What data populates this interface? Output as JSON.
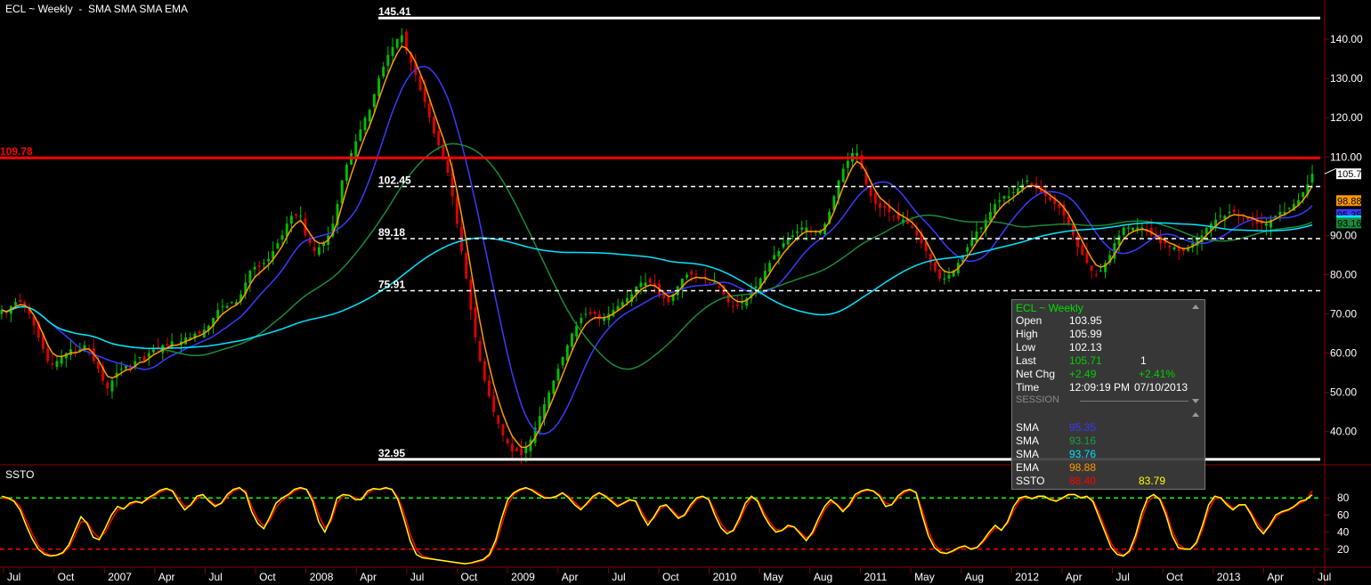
{
  "title": "ECL ~ Weekly  -  SMA SMA SMA EMA",
  "subtitle": "SSTO",
  "chart_data": [
    {
      "type": "candlestick",
      "title": "ECL ~ Weekly",
      "ylim": [
        32,
        150
      ],
      "y_ticks": [
        40,
        50,
        60,
        70,
        80,
        90,
        110,
        120,
        130,
        140
      ],
      "y_tick_labels": [
        "40.00",
        "50.00",
        "60.00",
        "70.00",
        "80.00",
        "90.00",
        "110.00",
        "120.00",
        "130.00",
        "140.00"
      ],
      "x_tick_labels": [
        "Jul",
        "Oct",
        "2007",
        "Apr",
        "Jul",
        "Oct",
        "2008",
        "Apr",
        "Jul",
        "Oct",
        "2009",
        "Apr",
        "Jul",
        "Oct",
        "2010",
        "May",
        "Aug",
        "2011",
        "May",
        "Aug",
        "2012",
        "Apr",
        "Jul",
        "Oct",
        "2013",
        "Apr",
        "Jul"
      ],
      "close": [
        71,
        70,
        72,
        73,
        73,
        72,
        70,
        67,
        64,
        61,
        58,
        57,
        58,
        59,
        60,
        61,
        60,
        61,
        62,
        61,
        58,
        56,
        53,
        51,
        53,
        55,
        56,
        57,
        56,
        58,
        59,
        58,
        60,
        61,
        61,
        62,
        62,
        63,
        62,
        63,
        64,
        64,
        65,
        65,
        66,
        67,
        69,
        71,
        72,
        72,
        73,
        73,
        75,
        78,
        81,
        82,
        82,
        83,
        84,
        86,
        88,
        90,
        93,
        95,
        95,
        95,
        90,
        88,
        86,
        87,
        88,
        90,
        93,
        98,
        104,
        108,
        111,
        114,
        117,
        120,
        122,
        126,
        130,
        133,
        136,
        138,
        140,
        141,
        137,
        134,
        131,
        127,
        124,
        120,
        116,
        113,
        110,
        106,
        100,
        93,
        86,
        79,
        71,
        64,
        58,
        53,
        49,
        45,
        42,
        39,
        37,
        35,
        35,
        34,
        36,
        38,
        41,
        44,
        47,
        50,
        53,
        56,
        59,
        62,
        65,
        67,
        69,
        70,
        70,
        70,
        69,
        69,
        70,
        71,
        72,
        73,
        74,
        75,
        77,
        78,
        78,
        78,
        77,
        75,
        74,
        73,
        75,
        77,
        79,
        80,
        80,
        80,
        79,
        79,
        78,
        78,
        77,
        75,
        73,
        72,
        72,
        73,
        74,
        76,
        77,
        79,
        81,
        83,
        85,
        86,
        88,
        89,
        90,
        91,
        92,
        92,
        91,
        91,
        91,
        93,
        96,
        100,
        104,
        107,
        109,
        111,
        111,
        107,
        103,
        100,
        98,
        97,
        97,
        96,
        95,
        94,
        94,
        93,
        92,
        90,
        88,
        86,
        83,
        81,
        79,
        79,
        80,
        81,
        83,
        85,
        87,
        89,
        91,
        92,
        94,
        96,
        98,
        99,
        100,
        100,
        101,
        102,
        103,
        104,
        103,
        102,
        101,
        100,
        99,
        98,
        97,
        95,
        93,
        90,
        87,
        85,
        83,
        81,
        80,
        81,
        83,
        85,
        88,
        90,
        92,
        92,
        92,
        92,
        92,
        91,
        90,
        89,
        88,
        88,
        87,
        87,
        86,
        86,
        87,
        88,
        89,
        90,
        92,
        93,
        94,
        95,
        95,
        96,
        96,
        95,
        95,
        94,
        94,
        93,
        93,
        93,
        94,
        95,
        96,
        96,
        97,
        98,
        99,
        101,
        103,
        105.71
      ],
      "overlays": [
        {
          "name": "SMA",
          "color": "#3a3aff",
          "last": 95.35
        },
        {
          "name": "SMA",
          "color": "#1a8a3a",
          "last": 93.16
        },
        {
          "name": "SMA",
          "color": "#00e5ff",
          "last": 93.76
        },
        {
          "name": "EMA",
          "color": "#ff9900",
          "last": 98.88
        }
      ],
      "horizontal_levels": [
        {
          "value": 145.41,
          "label": "145.41",
          "style": "solid",
          "color": "#ffffff"
        },
        {
          "value": 109.78,
          "label": "109.78",
          "style": "solid",
          "color": "#ff0000"
        },
        {
          "value": 102.45,
          "label": "102.45",
          "style": "dashed",
          "color": "#ffffff"
        },
        {
          "value": 89.18,
          "label": "89.18",
          "style": "dashed",
          "color": "#ffffff"
        },
        {
          "value": 75.91,
          "label": "75.91",
          "style": "dashed",
          "color": "#ffffff"
        },
        {
          "value": 32.95,
          "label": "32.95",
          "style": "solid",
          "color": "#ffffff"
        }
      ],
      "price_tags": [
        {
          "label": "105.71",
          "color": "#ffffff"
        },
        {
          "label": "98.88",
          "color": "#ff9900"
        },
        {
          "label": "95.35",
          "color": "#3a3aff"
        },
        {
          "label": "93.76",
          "color": "#00e5ff"
        },
        {
          "label": "93.16",
          "color": "#1a8a3a"
        }
      ]
    },
    {
      "type": "line",
      "title": "SSTO",
      "ylim": [
        0,
        100
      ],
      "y_ticks": [
        20,
        40,
        60,
        80
      ],
      "y_tick_labels": [
        "20",
        "40",
        "60",
        "80"
      ],
      "levels": [
        {
          "value": 80,
          "color": "#00ff00"
        },
        {
          "value": 20,
          "color": "#ff0000"
        }
      ],
      "k": [
        82,
        80,
        76,
        66,
        48,
        32,
        20,
        14,
        12,
        13,
        16,
        25,
        42,
        58,
        50,
        34,
        31,
        45,
        60,
        70,
        67,
        74,
        76,
        74,
        80,
        84,
        89,
        91,
        88,
        76,
        66,
        72,
        82,
        84,
        76,
        70,
        74,
        84,
        90,
        92,
        86,
        64,
        50,
        44,
        58,
        74,
        80,
        84,
        90,
        92,
        90,
        76,
        52,
        40,
        56,
        80,
        84,
        83,
        78,
        78,
        88,
        91,
        90,
        92,
        90,
        78,
        55,
        30,
        14,
        10,
        9,
        8,
        7,
        6,
        5,
        4,
        3,
        4,
        6,
        8,
        14,
        30,
        56,
        78,
        86,
        90,
        92,
        89,
        84,
        80,
        80,
        82,
        86,
        80,
        72,
        66,
        74,
        82,
        86,
        82,
        76,
        70,
        74,
        78,
        76,
        60,
        48,
        58,
        70,
        72,
        64,
        56,
        60,
        72,
        80,
        82,
        78,
        60,
        45,
        38,
        42,
        56,
        74,
        82,
        76,
        60,
        48,
        40,
        42,
        48,
        46,
        38,
        30,
        40,
        56,
        70,
        78,
        72,
        64,
        72,
        84,
        88,
        90,
        88,
        82,
        70,
        72,
        82,
        88,
        90,
        86,
        60,
        36,
        22,
        16,
        15,
        18,
        22,
        24,
        20,
        22,
        30,
        40,
        48,
        42,
        52,
        70,
        80,
        82,
        79,
        82,
        82,
        78,
        76,
        80,
        84,
        84,
        80,
        82,
        76,
        58,
        40,
        22,
        14,
        12,
        18,
        36,
        62,
        80,
        84,
        78,
        60,
        36,
        22,
        20,
        20,
        28,
        48,
        72,
        82,
        80,
        72,
        66,
        72,
        72,
        60,
        46,
        38,
        48,
        60,
        64,
        66,
        70,
        76,
        78,
        83.79
      ],
      "d": [
        80,
        79,
        77,
        70,
        54,
        38,
        24,
        16,
        13,
        13,
        15,
        22,
        36,
        52,
        52,
        40,
        33,
        40,
        54,
        66,
        68,
        72,
        75,
        75,
        78,
        82,
        87,
        90,
        89,
        80,
        70,
        71,
        79,
        83,
        78,
        72,
        73,
        81,
        88,
        91,
        88,
        70,
        55,
        47,
        54,
        69,
        77,
        82,
        88,
        91,
        90,
        80,
        60,
        45,
        52,
        74,
        82,
        83,
        80,
        78,
        85,
        90,
        90,
        91,
        90,
        81,
        62,
        38,
        20,
        12,
        10,
        8,
        7,
        6,
        5,
        4,
        3,
        4,
        5,
        7,
        12,
        25,
        48,
        72,
        84,
        89,
        91,
        90,
        86,
        81,
        80,
        81,
        85,
        82,
        75,
        68,
        72,
        80,
        85,
        83,
        78,
        72,
        73,
        77,
        77,
        64,
        52,
        56,
        67,
        71,
        66,
        58,
        59,
        69,
        78,
        81,
        79,
        65,
        50,
        41,
        41,
        52,
        69,
        80,
        78,
        64,
        52,
        43,
        42,
        46,
        46,
        40,
        33,
        37,
        51,
        66,
        75,
        73,
        66,
        70,
        81,
        87,
        89,
        88,
        84,
        74,
        72,
        79,
        86,
        89,
        87,
        66,
        42,
        26,
        18,
        15,
        17,
        21,
        23,
        21,
        22,
        28,
        37,
        45,
        43,
        50,
        65,
        77,
        81,
        80,
        81,
        82,
        79,
        77,
        79,
        83,
        84,
        81,
        81,
        78,
        63,
        45,
        27,
        17,
        13,
        16,
        31,
        55,
        75,
        82,
        80,
        65,
        42,
        26,
        21,
        20,
        26,
        43,
        66,
        79,
        80,
        74,
        68,
        71,
        72,
        63,
        50,
        41,
        46,
        57,
        63,
        65,
        69,
        74,
        77,
        88.4
      ]
    }
  ],
  "x_labels": [
    "Jul",
    "Oct",
    "2007",
    "Apr",
    "Jul",
    "Oct",
    "2008",
    "Apr",
    "Jul",
    "Oct",
    "2009",
    "Apr",
    "Jul",
    "Oct",
    "2010",
    "May",
    "Aug",
    "2011",
    "May",
    "Aug",
    "2012",
    "Apr",
    "Jul",
    "Oct",
    "2013",
    "Apr",
    "Jul"
  ],
  "info_panel": {
    "header": "ECL ~ Weekly",
    "rows": [
      {
        "label": "Open",
        "value": "103.95",
        "color": "#ffffff"
      },
      {
        "label": "High",
        "value": "105.99",
        "color": "#ffffff"
      },
      {
        "label": "Low",
        "value": "102.13",
        "color": "#ffffff"
      },
      {
        "label": "Last",
        "value": "105.71",
        "value2": "1",
        "color": "#00d000"
      },
      {
        "label": "Net Chg",
        "value": "+2.49",
        "value2": "+2.41%",
        "color": "#00d000"
      },
      {
        "label": "Time",
        "value": "12:09:19 PM",
        "value2": "07/10/2013",
        "color": "#ffffff"
      }
    ],
    "session_label": "SESSION",
    "indicators": [
      {
        "label": "SMA",
        "value": "95.35",
        "color": "#3a3aff"
      },
      {
        "label": "SMA",
        "value": "93.16",
        "color": "#1aa040"
      },
      {
        "label": "SMA",
        "value": "93.76",
        "color": "#00e5ff"
      },
      {
        "label": "EMA",
        "value": "98.88",
        "color": "#ff9900"
      },
      {
        "label": "SSTO",
        "value": "88.40",
        "value2": "83.79",
        "color": "#ff0000",
        "color2": "#ffff00"
      }
    ]
  }
}
